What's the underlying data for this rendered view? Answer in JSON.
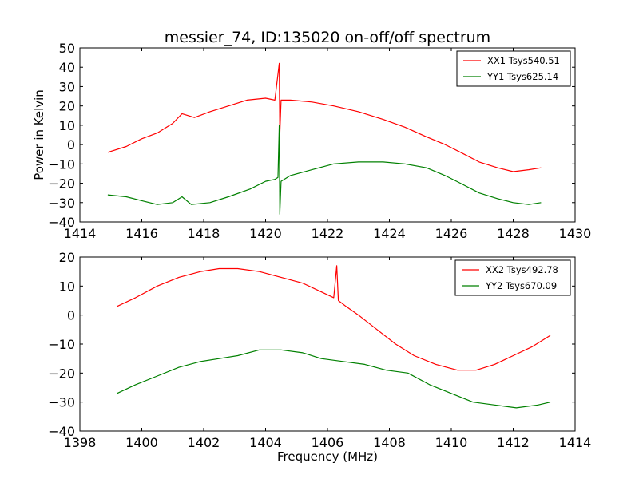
{
  "figure": {
    "title": "messier_74, ID:135020 on-off/off spectrum"
  },
  "chart_data": [
    {
      "type": "line",
      "title": "messier_74, ID:135020 on-off/off spectrum",
      "xlabel": "",
      "ylabel": "Power in Kelvin",
      "xlim": [
        1414,
        1430
      ],
      "ylim": [
        -40,
        50
      ],
      "xticks": [
        "1414",
        "1416",
        "1418",
        "1420",
        "1422",
        "1424",
        "1426",
        "1428",
        "1430"
      ],
      "yticks": [
        "−40",
        "−30",
        "−20",
        "−10",
        "0",
        "10",
        "20",
        "30",
        "40",
        "50"
      ],
      "grid": false,
      "legend_position": "top-right",
      "series": [
        {
          "name": "XX1 Tsys540.51",
          "color": "#ff0000",
          "x": [
            1414.9,
            1415.5,
            1416.0,
            1416.5,
            1417.0,
            1417.3,
            1417.7,
            1418.2,
            1418.8,
            1419.4,
            1420.0,
            1420.3,
            1420.44,
            1420.46,
            1420.5,
            1420.8,
            1421.5,
            1422.2,
            1423.0,
            1423.8,
            1424.5,
            1425.2,
            1425.8,
            1426.3,
            1426.9,
            1427.5,
            1428.0,
            1428.5,
            1428.9
          ],
          "values": [
            -4,
            -1,
            3,
            6,
            11,
            16,
            14,
            17,
            20,
            23,
            24,
            23,
            42,
            5,
            23,
            23,
            22,
            20,
            17,
            13,
            9,
            4,
            0,
            -4,
            -9,
            -12,
            -14,
            -13,
            -12
          ]
        },
        {
          "name": "YY1 Tsys625.14",
          "color": "#008000",
          "x": [
            1414.9,
            1415.5,
            1416.0,
            1416.5,
            1417.0,
            1417.3,
            1417.6,
            1418.2,
            1418.8,
            1419.5,
            1420.0,
            1420.3,
            1420.4,
            1420.44,
            1420.46,
            1420.5,
            1420.8,
            1421.5,
            1422.2,
            1423.0,
            1423.8,
            1424.5,
            1425.2,
            1425.8,
            1426.3,
            1426.9,
            1427.5,
            1428.0,
            1428.5,
            1428.9
          ],
          "values": [
            -26,
            -27,
            -29,
            -31,
            -30,
            -27,
            -31,
            -30,
            -27,
            -23,
            -19,
            -18,
            -17,
            10,
            -36,
            -19,
            -16,
            -13,
            -10,
            -9,
            -9,
            -10,
            -12,
            -16,
            -20,
            -25,
            -28,
            -30,
            -31,
            -30
          ]
        }
      ]
    },
    {
      "type": "line",
      "title": "",
      "xlabel": "Frequency (MHz)",
      "ylabel": "",
      "xlim": [
        1398,
        1414
      ],
      "ylim": [
        -40,
        20
      ],
      "xticks": [
        "1398",
        "1400",
        "1402",
        "1404",
        "1406",
        "1408",
        "1410",
        "1412",
        "1414"
      ],
      "yticks": [
        "−40",
        "−30",
        "−20",
        "−10",
        "0",
        "10",
        "20"
      ],
      "grid": false,
      "legend_position": "top-right",
      "series": [
        {
          "name": "XX2 Tsys492.78",
          "color": "#ff0000",
          "x": [
            1399.2,
            1399.8,
            1400.5,
            1401.2,
            1401.9,
            1402.5,
            1403.1,
            1403.8,
            1404.5,
            1405.2,
            1405.8,
            1406.2,
            1406.3,
            1406.35,
            1406.6,
            1407.0,
            1407.6,
            1408.2,
            1408.8,
            1409.5,
            1410.2,
            1410.8,
            1411.4,
            1412.0,
            1412.6,
            1413.2
          ],
          "values": [
            3,
            6,
            10,
            13,
            15,
            16,
            16,
            15,
            13,
            11,
            8,
            6,
            17,
            5,
            3,
            0,
            -5,
            -10,
            -14,
            -17,
            -19,
            -19,
            -17,
            -14,
            -11,
            -7
          ]
        },
        {
          "name": "YY2 Tsys670.09",
          "color": "#008000",
          "x": [
            1399.2,
            1399.8,
            1400.5,
            1401.2,
            1401.9,
            1402.5,
            1403.1,
            1403.8,
            1404.5,
            1405.2,
            1405.8,
            1406.5,
            1407.2,
            1407.9,
            1408.6,
            1409.3,
            1410.0,
            1410.7,
            1411.4,
            1412.1,
            1412.8,
            1413.2
          ],
          "values": [
            -27,
            -24,
            -21,
            -18,
            -16,
            -15,
            -14,
            -12,
            -12,
            -13,
            -15,
            -16,
            -17,
            -19,
            -20,
            -24,
            -27,
            -30,
            -31,
            -32,
            -31,
            -30
          ]
        }
      ]
    }
  ]
}
